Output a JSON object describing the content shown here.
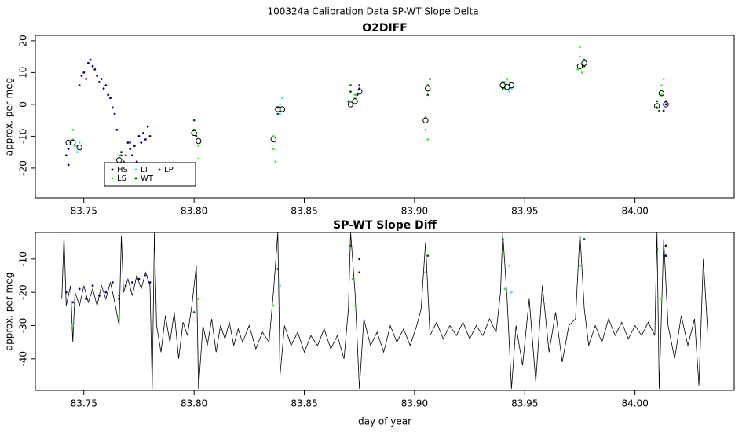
{
  "suptitle": "100324a   Calibration Data SP-WT Slope Delta",
  "chart_data": [
    {
      "type": "scatter",
      "title": "O2DIFF",
      "ylabel": "approx. per meg",
      "xlim": [
        83.728,
        84.045
      ],
      "ylim": [
        -29.4,
        21.7
      ],
      "xticks": [
        83.75,
        {
          "value": 83.8,
          "label": "83.80"
        },
        83.85,
        {
          "value": 83.9,
          "label": "83.90"
        },
        83.95,
        {
          "value": 84,
          "label": "84.00"
        }
      ],
      "yticks": [
        -20,
        -10,
        0,
        10,
        20
      ],
      "legend": true,
      "series": [
        {
          "name": "HS",
          "color": "#00008b",
          "x": [
            83.742,
            83.743,
            83.743,
            83.744,
            83.748,
            83.749,
            83.75,
            83.751,
            83.752,
            83.753,
            83.754,
            83.755,
            83.756,
            83.757,
            83.758,
            83.759,
            83.76,
            83.761,
            83.762,
            83.763,
            83.764,
            83.765,
            83.767,
            83.768,
            83.77,
            83.771,
            83.772,
            83.773,
            83.774,
            83.775,
            83.776,
            83.777,
            83.778,
            83.779,
            83.78,
            83.874,
            83.875,
            83.875,
            84.013,
            84.014,
            84.014
          ],
          "values": [
            -16,
            -14,
            -19,
            -12,
            6,
            9,
            10,
            8,
            13,
            14,
            12,
            11,
            9,
            7,
            8,
            5,
            6,
            3,
            2,
            -1,
            -3,
            -8,
            -15,
            -18,
            -12,
            -14,
            -16,
            -13,
            -18,
            -10,
            -12,
            -9,
            -11,
            -7,
            -10,
            3,
            5,
            6,
            -2,
            0,
            1
          ]
        },
        {
          "name": "LS",
          "color": "#33ee33",
          "x": [
            83.745,
            83.745,
            83.746,
            83.766,
            83.766,
            83.801,
            83.802,
            83.802,
            83.836,
            83.836,
            83.837,
            83.872,
            83.873,
            83.873,
            83.905,
            83.905,
            83.906,
            83.941,
            83.941,
            83.942,
            83.974,
            83.975,
            83.975,
            83.976,
            84.012,
            84.012,
            84.013
          ],
          "values": [
            -8,
            -11,
            -13,
            -16,
            -19,
            -10,
            -13,
            -17,
            -10,
            -14,
            -18,
            0,
            2,
            3,
            -4,
            -8,
            -11,
            5,
            7,
            8,
            11,
            15,
            18,
            10,
            3,
            6,
            8
          ]
        },
        {
          "name": "LT",
          "color": "#44e8f0",
          "x": [
            83.747,
            83.747,
            83.748,
            83.839,
            83.839,
            83.84,
            83.943,
            83.943,
            83.944
          ],
          "values": [
            -13,
            -15,
            -12,
            -3,
            0,
            2,
            4,
            7,
            5
          ]
        },
        {
          "name": "WT",
          "color": "#006400",
          "x": [
            83.767,
            83.768,
            83.8,
            83.8,
            83.801,
            83.838,
            83.838,
            83.87,
            83.871,
            83.871,
            83.906,
            83.906,
            83.907,
            83.94,
            83.94,
            83.977,
            83.977,
            84.01,
            84.01,
            84.011
          ],
          "values": [
            -16,
            -18,
            -5,
            -8,
            -10,
            -1,
            -3,
            1,
            4,
            6,
            3,
            6,
            8,
            5,
            7,
            12,
            14,
            -1,
            1,
            -2
          ]
        },
        {
          "name": "LP",
          "color": "#333333",
          "x": [
            83.769,
            83.771
          ],
          "values": [
            -16,
            -12
          ]
        }
      ],
      "means": {
        "color": "#000000",
        "x": [
          83.743,
          83.745,
          83.748,
          83.766,
          83.8,
          83.802,
          83.836,
          83.838,
          83.84,
          83.871,
          83.873,
          83.875,
          83.905,
          83.906,
          83.94,
          83.942,
          83.944,
          83.975,
          83.977,
          84.01,
          84.012,
          84.014
        ],
        "values": [
          -12,
          -12,
          -13.5,
          -17.5,
          -9,
          -11.5,
          -11,
          -1.5,
          -1.5,
          0,
          1,
          4,
          -5,
          5,
          6,
          5.5,
          6,
          12,
          13,
          -0.5,
          3.5,
          0
        ]
      }
    },
    {
      "type": "line",
      "title": "SP-WT Slope Diff",
      "ylabel": "approx. per meg",
      "xlabel": "day of year",
      "xlim": [
        83.728,
        84.045
      ],
      "ylim": [
        -49.5,
        -2
      ],
      "xticks": [
        83.75,
        {
          "value": 83.8,
          "label": "83.80"
        },
        83.85,
        {
          "value": 83.9,
          "label": "83.90"
        },
        83.95,
        {
          "value": 84,
          "label": "84.00"
        }
      ],
      "yticks": [
        -40,
        -30,
        -20,
        -10
      ],
      "line": {
        "color": "#000000",
        "x": [
          83.74,
          83.741,
          83.742,
          83.744,
          83.745,
          83.746,
          83.748,
          83.75,
          83.752,
          83.754,
          83.756,
          83.758,
          83.76,
          83.762,
          83.764,
          83.766,
          83.767,
          83.768,
          83.77,
          83.772,
          83.774,
          83.776,
          83.778,
          83.78,
          83.781,
          83.782,
          83.783,
          83.785,
          83.787,
          83.789,
          83.791,
          83.793,
          83.795,
          83.797,
          83.799,
          83.801,
          83.802,
          83.804,
          83.806,
          83.808,
          83.81,
          83.812,
          83.814,
          83.816,
          83.818,
          83.82,
          83.822,
          83.825,
          83.828,
          83.831,
          83.834,
          83.836,
          83.838,
          83.839,
          83.841,
          83.844,
          83.847,
          83.85,
          83.853,
          83.856,
          83.859,
          83.862,
          83.865,
          83.868,
          83.87,
          83.871,
          83.873,
          83.875,
          83.877,
          83.88,
          83.883,
          83.886,
          83.889,
          83.892,
          83.895,
          83.898,
          83.901,
          83.903,
          83.905,
          83.907,
          83.91,
          83.913,
          83.916,
          83.919,
          83.922,
          83.925,
          83.928,
          83.931,
          83.934,
          83.937,
          83.939,
          83.94,
          83.942,
          83.944,
          83.946,
          83.949,
          83.952,
          83.955,
          83.958,
          83.961,
          83.964,
          83.967,
          83.97,
          83.973,
          83.975,
          83.977,
          83.979,
          83.982,
          83.985,
          83.988,
          83.991,
          83.994,
          83.997,
          84.0,
          84.003,
          84.006,
          84.009,
          84.01,
          84.011,
          84.013,
          84.015,
          84.018,
          84.021,
          84.024,
          84.027,
          84.029,
          84.031,
          84.033
        ],
        "values": [
          -22,
          -3,
          -24,
          -18,
          -35,
          -20,
          -24,
          -18,
          -23,
          -19,
          -24,
          -18,
          -22,
          -17,
          -23,
          -30,
          -3,
          -20,
          -16,
          -21,
          -15,
          -19,
          -14,
          -18,
          -49,
          -2,
          -30,
          -38,
          -27,
          -35,
          -26,
          -40,
          -29,
          -33,
          -24,
          -12,
          -49,
          -30,
          -36,
          -28,
          -38,
          -30,
          -34,
          -29,
          -36,
          -31,
          -35,
          -30,
          -37,
          -32,
          -35,
          -20,
          -2,
          -45,
          -30,
          -36,
          -32,
          -38,
          -33,
          -36,
          -31,
          -37,
          -33,
          -40,
          -25,
          -2,
          -20,
          -49,
          -28,
          -36,
          -32,
          -38,
          -30,
          -35,
          -31,
          -36,
          -30,
          -25,
          -5,
          -33,
          -29,
          -34,
          -30,
          -33,
          -29,
          -34,
          -30,
          -33,
          -28,
          -32,
          -20,
          -2,
          -22,
          -49,
          -30,
          -42,
          -22,
          -47,
          -18,
          -38,
          -26,
          -41,
          -30,
          -28,
          -2,
          -25,
          -36,
          -30,
          -35,
          -28,
          -33,
          -29,
          -34,
          -30,
          -33,
          -29,
          -33,
          -2,
          -49,
          -4,
          -30,
          -40,
          -27,
          -36,
          -28,
          -48,
          -10,
          -32
        ]
      },
      "series": [
        {
          "color": "#00008b",
          "x": [
            83.742,
            83.745,
            83.748,
            83.751,
            83.754,
            83.757,
            83.76,
            83.763,
            83.766,
            83.769,
            83.772,
            83.775,
            83.778,
            83.78,
            83.875,
            83.875,
            84.014,
            84.014
          ],
          "values": [
            -20,
            -23,
            -19,
            -22,
            -18,
            -21,
            -20,
            -17,
            -22,
            -18,
            -17,
            -16,
            -15,
            -17,
            -10,
            -14,
            -6,
            -9
          ]
        },
        {
          "color": "#33ee33",
          "x": [
            83.745,
            83.766,
            83.802,
            83.836,
            83.872,
            83.873,
            83.905,
            83.94,
            83.941,
            83.975,
            84.012
          ],
          "values": [
            -30,
            -27,
            -22,
            -24,
            -16,
            -24,
            -14,
            -8,
            -19,
            -12,
            -22
          ]
        },
        {
          "color": "#44e8f0",
          "x": [
            83.746,
            83.839,
            83.943,
            83.944
          ],
          "values": [
            -24,
            -18,
            -12,
            -20
          ]
        },
        {
          "color": "#006400",
          "x": [
            83.766,
            83.8,
            83.838,
            83.871,
            83.906,
            83.94,
            83.977,
            84.01
          ],
          "values": [
            -21,
            -26,
            -13,
            -6,
            -9,
            -4,
            -4,
            -7
          ]
        }
      ]
    }
  ]
}
